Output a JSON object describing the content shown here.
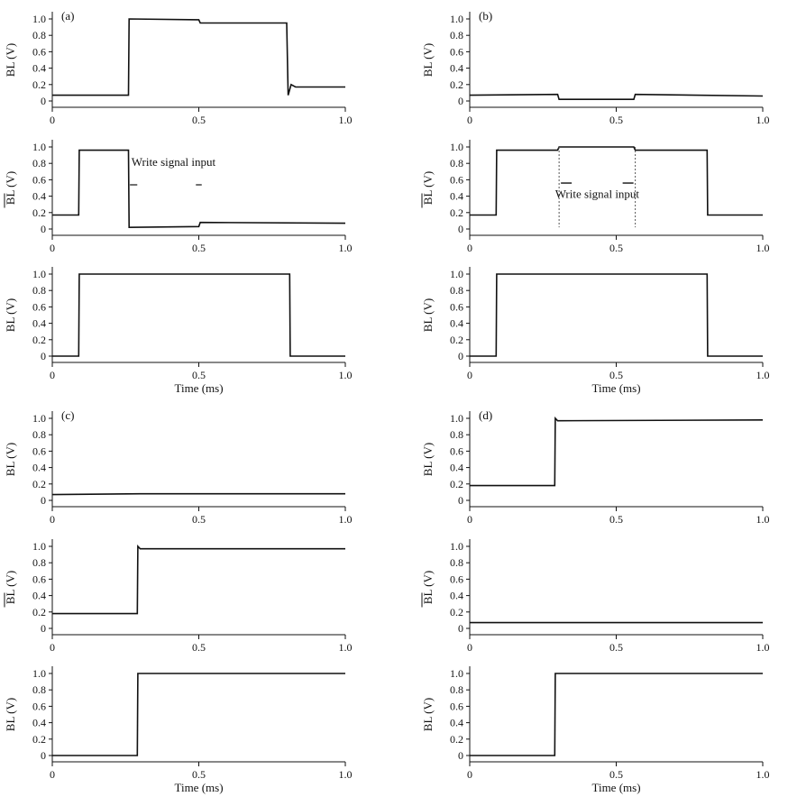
{
  "chart_data": [
    {
      "type": "line",
      "panel": "a",
      "row": 1,
      "panel_label": "(a)",
      "ylabel": "BL (V)",
      "xlabel": "",
      "xlim": [
        0,
        1.0
      ],
      "ylim": [
        0,
        1.0
      ],
      "xticks": [
        "0",
        "0.5",
        "1.0"
      ],
      "yticks": [
        "0",
        "0.2",
        "0.4",
        "0.6",
        "0.8",
        "1.0"
      ],
      "series": [
        {
          "x": [
            0,
            0.26,
            0.262,
            0.5,
            0.505,
            0.8,
            0.805,
            0.815,
            0.83,
            1.0
          ],
          "values": [
            0.07,
            0.07,
            1.0,
            0.99,
            0.95,
            0.95,
            0.07,
            0.2,
            0.17,
            0.17
          ]
        }
      ]
    },
    {
      "type": "line",
      "panel": "b",
      "row": 1,
      "panel_label": "(b)",
      "ylabel": "BL (V)",
      "xlabel": "",
      "xlim": [
        0,
        1.0
      ],
      "ylim": [
        0,
        1.0
      ],
      "xticks": [
        "0",
        "0.5",
        "1.0"
      ],
      "yticks": [
        "0",
        "0.2",
        "0.4",
        "0.6",
        "0.8",
        "1.0"
      ],
      "series": [
        {
          "x": [
            0,
            0.3,
            0.305,
            0.56,
            0.565,
            1.0
          ],
          "values": [
            0.07,
            0.08,
            0.02,
            0.02,
            0.08,
            0.06
          ]
        }
      ]
    },
    {
      "type": "line",
      "panel": "a",
      "row": 2,
      "ylabel": "BL (V)",
      "ylabel_overline": true,
      "xlabel": "",
      "xlim": [
        0,
        1.0
      ],
      "ylim": [
        0,
        1.0
      ],
      "xticks": [
        "0",
        "0.5",
        "1.0"
      ],
      "yticks": [
        "0",
        "0.2",
        "0.4",
        "0.6",
        "0.8",
        "1.0"
      ],
      "annotation": "Write signal input",
      "series": [
        {
          "x": [
            0,
            0.09,
            0.092,
            0.26,
            0.262,
            0.5,
            0.505,
            1.0
          ],
          "values": [
            0.17,
            0.17,
            0.96,
            0.96,
            0.02,
            0.03,
            0.08,
            0.07
          ]
        }
      ]
    },
    {
      "type": "line",
      "panel": "b",
      "row": 2,
      "ylabel": "BL (V)",
      "ylabel_overline": true,
      "xlabel": "",
      "xlim": [
        0,
        1.0
      ],
      "ylim": [
        0,
        1.0
      ],
      "xticks": [
        "0",
        "0.5",
        "1.0"
      ],
      "yticks": [
        "0",
        "0.2",
        "0.4",
        "0.6",
        "0.8",
        "1.0"
      ],
      "annotation": "Write signal input",
      "series": [
        {
          "x": [
            0,
            0.09,
            0.092,
            0.3,
            0.305,
            0.56,
            0.565,
            0.81,
            0.812,
            1.0
          ],
          "values": [
            0.17,
            0.17,
            0.96,
            0.96,
            1.0,
            1.0,
            0.96,
            0.96,
            0.17,
            0.17
          ]
        }
      ]
    },
    {
      "type": "line",
      "panel": "a",
      "row": 3,
      "ylabel": "BL (V)",
      "xlabel": "Time (ms)",
      "xlim": [
        0,
        1.0
      ],
      "ylim": [
        0,
        1.0
      ],
      "xticks": [
        "0",
        "0.5",
        "1.0"
      ],
      "yticks": [
        "0",
        "0.2",
        "0.4",
        "0.6",
        "0.8",
        "1.0"
      ],
      "series": [
        {
          "x": [
            0,
            0.09,
            0.092,
            0.81,
            0.812,
            1.0
          ],
          "values": [
            0.0,
            0.0,
            1.0,
            1.0,
            0.0,
            0.0
          ]
        }
      ]
    },
    {
      "type": "line",
      "panel": "b",
      "row": 3,
      "ylabel": "BL (V)",
      "xlabel": "Time (ms)",
      "xlim": [
        0,
        1.0
      ],
      "ylim": [
        0,
        1.0
      ],
      "xticks": [
        "0",
        "0.5",
        "1.0"
      ],
      "yticks": [
        "0",
        "0.2",
        "0.4",
        "0.6",
        "0.8",
        "1.0"
      ],
      "series": [
        {
          "x": [
            0,
            0.09,
            0.092,
            0.81,
            0.812,
            1.0
          ],
          "values": [
            0.0,
            0.0,
            1.0,
            1.0,
            0.0,
            0.0
          ]
        }
      ]
    },
    {
      "type": "line",
      "panel": "c",
      "row": 1,
      "panel_label": "(c)",
      "ylabel": "BL (V)",
      "xlabel": "",
      "xlim": [
        0,
        1.0
      ],
      "ylim": [
        0,
        1.0
      ],
      "xticks": [
        "0",
        "0.5",
        "1.0"
      ],
      "yticks": [
        "0",
        "0.2",
        "0.4",
        "0.6",
        "0.8",
        "1.0"
      ],
      "series": [
        {
          "x": [
            0,
            0.3,
            1.0
          ],
          "values": [
            0.07,
            0.08,
            0.08
          ]
        }
      ]
    },
    {
      "type": "line",
      "panel": "d",
      "row": 1,
      "panel_label": "(d)",
      "ylabel": "BL (V)",
      "xlabel": "",
      "xlim": [
        0,
        1.0
      ],
      "ylim": [
        0,
        1.0
      ],
      "xticks": [
        "0",
        "0.5",
        "1.0"
      ],
      "yticks": [
        "0",
        "0.2",
        "0.4",
        "0.6",
        "0.8",
        "1.0"
      ],
      "series": [
        {
          "x": [
            0,
            0.2,
            0.29,
            0.292,
            0.3,
            1.0
          ],
          "values": [
            0.18,
            0.18,
            0.18,
            1.0,
            0.97,
            0.98
          ]
        }
      ]
    },
    {
      "type": "line",
      "panel": "c",
      "row": 2,
      "ylabel": "BL (V)",
      "ylabel_overline": true,
      "xlabel": "",
      "xlim": [
        0,
        1.0
      ],
      "ylim": [
        0,
        1.0
      ],
      "xticks": [
        "0",
        "0.5",
        "1.0"
      ],
      "yticks": [
        "0",
        "0.2",
        "0.4",
        "0.6",
        "0.8",
        "1.0"
      ],
      "series": [
        {
          "x": [
            0,
            0.29,
            0.292,
            0.3,
            1.0
          ],
          "values": [
            0.18,
            0.18,
            1.0,
            0.97,
            0.97
          ]
        }
      ]
    },
    {
      "type": "line",
      "panel": "d",
      "row": 2,
      "ylabel": "BL (V)",
      "ylabel_overline": true,
      "xlabel": "",
      "xlim": [
        0,
        1.0
      ],
      "ylim": [
        0,
        1.0
      ],
      "xticks": [
        "0",
        "0.5",
        "1.0"
      ],
      "yticks": [
        "0",
        "0.2",
        "0.4",
        "0.6",
        "0.8",
        "1.0"
      ],
      "series": [
        {
          "x": [
            0,
            0.3,
            1.0
          ],
          "values": [
            0.07,
            0.07,
            0.07
          ]
        }
      ]
    },
    {
      "type": "line",
      "panel": "c",
      "row": 3,
      "ylabel": "BL (V)",
      "xlabel": "Time (ms)",
      "xlim": [
        0,
        1.0
      ],
      "ylim": [
        0,
        1.0
      ],
      "xticks": [
        "0",
        "0.5",
        "1.0"
      ],
      "yticks": [
        "0",
        "0.2",
        "0.4",
        "0.6",
        "0.8",
        "1.0"
      ],
      "series": [
        {
          "x": [
            0,
            0.29,
            0.292,
            1.0
          ],
          "values": [
            0.0,
            0.0,
            1.0,
            1.0
          ]
        }
      ]
    },
    {
      "type": "line",
      "panel": "d",
      "row": 3,
      "ylabel": "BL (V)",
      "xlabel": "Time (ms)",
      "xlim": [
        0,
        1.0
      ],
      "ylim": [
        0,
        1.0
      ],
      "xticks": [
        "0",
        "0.5",
        "1.0"
      ],
      "yticks": [
        "0",
        "0.2",
        "0.4",
        "0.6",
        "0.8",
        "1.0"
      ],
      "series": [
        {
          "x": [
            0,
            0.29,
            0.292,
            1.0
          ],
          "values": [
            0.0,
            0.0,
            1.0,
            1.0
          ]
        }
      ]
    }
  ]
}
